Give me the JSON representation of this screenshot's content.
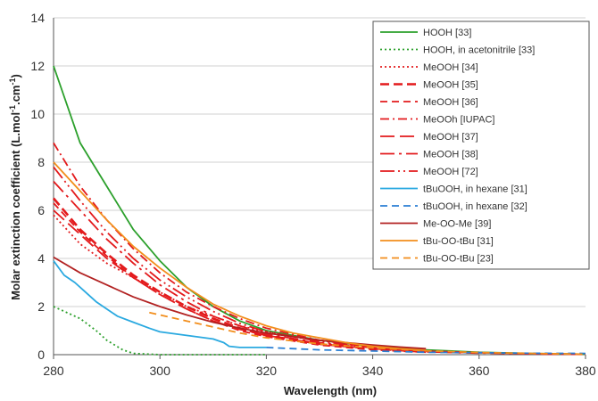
{
  "chart_data": {
    "type": "line",
    "title": "",
    "xlabel": "Wavelength (nm)",
    "ylabel_parts": [
      "Molar extinction coefficient (L.mol",
      "-1",
      ".cm",
      "-1",
      ")"
    ],
    "xlim": [
      280,
      380
    ],
    "ylim": [
      0,
      14
    ],
    "x_ticks": [
      280,
      300,
      320,
      340,
      360,
      380
    ],
    "y_ticks": [
      0,
      2,
      4,
      6,
      8,
      10,
      12,
      14
    ],
    "grid": "horizontal",
    "legend_position": "top-right",
    "series": [
      {
        "name": "HOOH [33]",
        "color": "#2ca02c",
        "dash": "solid",
        "points": [
          [
            280,
            12.0
          ],
          [
            285,
            8.8
          ],
          [
            290,
            7.0
          ],
          [
            295,
            5.2
          ],
          [
            300,
            3.9
          ],
          [
            305,
            2.8
          ],
          [
            310,
            2.0
          ],
          [
            315,
            1.4
          ],
          [
            320,
            1.0
          ],
          [
            330,
            0.6
          ],
          [
            340,
            0.35
          ],
          [
            350,
            0.2
          ],
          [
            360,
            0.1
          ],
          [
            370,
            0.05
          ],
          [
            380,
            0.02
          ]
        ]
      },
      {
        "name": "HOOH, in acetonitrile [33]",
        "color": "#2ca02c",
        "dash": "dot",
        "points": [
          [
            280,
            2.0
          ],
          [
            283,
            1.7
          ],
          [
            285,
            1.5
          ],
          [
            288,
            1.0
          ],
          [
            290,
            0.6
          ],
          [
            293,
            0.2
          ],
          [
            295,
            0.05
          ],
          [
            300,
            0.0
          ],
          [
            320,
            0.0
          ]
        ]
      },
      {
        "name": "MeOOH [34]",
        "color": "#e31a1c",
        "dash": "dot",
        "points": [
          [
            280,
            5.8
          ],
          [
            285,
            4.6
          ],
          [
            290,
            3.8
          ],
          [
            295,
            3.2
          ],
          [
            300,
            2.6
          ],
          [
            305,
            2.0
          ],
          [
            310,
            1.6
          ],
          [
            315,
            1.2
          ],
          [
            320,
            0.95
          ],
          [
            330,
            0.6
          ],
          [
            340,
            0.35
          ],
          [
            350,
            0.2
          ]
        ]
      },
      {
        "name": "MeOOH [35]",
        "color": "#e31a1c",
        "dash": "heavy-dash",
        "points": [
          [
            280,
            6.5
          ],
          [
            285,
            5.2
          ],
          [
            290,
            4.2
          ],
          [
            295,
            3.3
          ],
          [
            300,
            2.6
          ],
          [
            305,
            2.0
          ],
          [
            310,
            1.5
          ],
          [
            315,
            1.1
          ],
          [
            320,
            0.8
          ],
          [
            330,
            0.45
          ],
          [
            340,
            0.25
          ],
          [
            350,
            0.12
          ]
        ]
      },
      {
        "name": "MeOOH [36]",
        "color": "#e31a1c",
        "dash": "dash",
        "points": [
          [
            280,
            6.3
          ],
          [
            285,
            5.1
          ],
          [
            290,
            4.1
          ],
          [
            295,
            3.2
          ],
          [
            300,
            2.5
          ],
          [
            305,
            1.9
          ],
          [
            310,
            1.4
          ],
          [
            315,
            1.0
          ],
          [
            320,
            0.75
          ],
          [
            330,
            0.4
          ],
          [
            340,
            0.2
          ],
          [
            350,
            0.1
          ]
        ]
      },
      {
        "name": "MeOOh [IUPAC]",
        "color": "#e31a1c",
        "dash": "dash-dot",
        "points": [
          [
            280,
            8.8
          ],
          [
            285,
            7.0
          ],
          [
            290,
            5.6
          ],
          [
            295,
            4.4
          ],
          [
            300,
            3.4
          ],
          [
            305,
            2.6
          ],
          [
            310,
            2.0
          ],
          [
            315,
            1.5
          ],
          [
            320,
            1.1
          ],
          [
            330,
            0.6
          ],
          [
            340,
            0.3
          ],
          [
            350,
            0.15
          ],
          [
            360,
            0.07
          ]
        ]
      },
      {
        "name": "MeOOH [37]",
        "color": "#e31a1c",
        "dash": "long-dash",
        "points": [
          [
            280,
            6.0
          ],
          [
            285,
            5.0
          ],
          [
            290,
            4.0
          ],
          [
            295,
            3.2
          ],
          [
            300,
            2.5
          ],
          [
            305,
            1.9
          ],
          [
            310,
            1.4
          ],
          [
            315,
            1.05
          ],
          [
            320,
            0.8
          ],
          [
            330,
            0.45
          ],
          [
            340,
            0.25
          ],
          [
            350,
            0.12
          ],
          [
            360,
            0.06
          ]
        ]
      },
      {
        "name": "MeOOH [38]",
        "color": "#e31a1c",
        "dash": "long-dash-dot",
        "points": [
          [
            280,
            7.2
          ],
          [
            285,
            6.0
          ],
          [
            290,
            4.8
          ],
          [
            295,
            3.8
          ],
          [
            300,
            2.9
          ],
          [
            305,
            2.2
          ],
          [
            310,
            1.6
          ],
          [
            315,
            1.2
          ],
          [
            320,
            0.85
          ],
          [
            330,
            0.5
          ],
          [
            340,
            0.28
          ],
          [
            350,
            0.14
          ],
          [
            360,
            0.07
          ],
          [
            370,
            0.03
          ],
          [
            380,
            0.01
          ]
        ]
      },
      {
        "name": "MeOOH [72]",
        "color": "#e31a1c",
        "dash": "long-dash-dot-dot",
        "points": [
          [
            280,
            7.8
          ],
          [
            285,
            6.4
          ],
          [
            290,
            5.1
          ],
          [
            295,
            4.0
          ],
          [
            300,
            3.1
          ],
          [
            305,
            2.4
          ],
          [
            310,
            1.8
          ],
          [
            315,
            1.3
          ],
          [
            320,
            0.95
          ],
          [
            330,
            0.55
          ],
          [
            340,
            0.3
          ],
          [
            350,
            0.15
          ],
          [
            360,
            0.08
          ],
          [
            370,
            0.04
          ],
          [
            380,
            0.02
          ]
        ]
      },
      {
        "name": "tBuOOH, in hexane [31]",
        "color": "#2aa9e0",
        "dash": "solid",
        "points": [
          [
            280,
            3.9
          ],
          [
            282,
            3.3
          ],
          [
            284,
            3.0
          ],
          [
            286,
            2.6
          ],
          [
            288,
            2.2
          ],
          [
            290,
            1.9
          ],
          [
            292,
            1.6
          ],
          [
            295,
            1.35
          ],
          [
            298,
            1.1
          ],
          [
            300,
            0.95
          ],
          [
            305,
            0.8
          ],
          [
            310,
            0.65
          ],
          [
            312,
            0.5
          ],
          [
            313,
            0.35
          ],
          [
            315,
            0.3
          ],
          [
            320,
            0.3
          ]
        ]
      },
      {
        "name": "tBuOOH, in hexane [32]",
        "color": "#2a7fd4",
        "dash": "dash",
        "points": [
          [
            320,
            0.3
          ],
          [
            330,
            0.2
          ],
          [
            340,
            0.15
          ],
          [
            350,
            0.1
          ],
          [
            360,
            0.08
          ],
          [
            370,
            0.06
          ],
          [
            380,
            0.05
          ]
        ]
      },
      {
        "name": "Me-OO-Me [39]",
        "color": "#b22222",
        "dash": "solid",
        "points": [
          [
            280,
            4.05
          ],
          [
            285,
            3.4
          ],
          [
            290,
            2.9
          ],
          [
            295,
            2.4
          ],
          [
            300,
            2.0
          ],
          [
            305,
            1.65
          ],
          [
            310,
            1.35
          ],
          [
            315,
            1.1
          ],
          [
            320,
            0.9
          ],
          [
            325,
            0.75
          ],
          [
            330,
            0.6
          ],
          [
            335,
            0.5
          ],
          [
            340,
            0.4
          ],
          [
            345,
            0.32
          ],
          [
            350,
            0.25
          ]
        ]
      },
      {
        "name": "tBu-OO-tBu [31]",
        "color": "#f28e1c",
        "dash": "solid",
        "points": [
          [
            280,
            8.0
          ],
          [
            285,
            6.8
          ],
          [
            290,
            5.6
          ],
          [
            295,
            4.5
          ],
          [
            300,
            3.6
          ],
          [
            305,
            2.8
          ],
          [
            310,
            2.1
          ],
          [
            315,
            1.6
          ],
          [
            320,
            1.2
          ],
          [
            325,
            0.9
          ],
          [
            330,
            0.7
          ],
          [
            335,
            0.5
          ],
          [
            340,
            0.35
          ],
          [
            345,
            0.25
          ],
          [
            350,
            0.18
          ]
        ]
      },
      {
        "name": "tBu-OO-tBu [23]",
        "color": "#f28e1c",
        "dash": "dash",
        "points": [
          [
            298,
            1.75
          ],
          [
            305,
            1.4
          ],
          [
            310,
            1.15
          ],
          [
            315,
            0.9
          ],
          [
            320,
            0.7
          ],
          [
            330,
            0.45
          ],
          [
            340,
            0.28
          ],
          [
            350,
            0.16
          ],
          [
            360,
            0.09
          ],
          [
            370,
            0.05
          ],
          [
            380,
            0.02
          ]
        ]
      }
    ]
  }
}
